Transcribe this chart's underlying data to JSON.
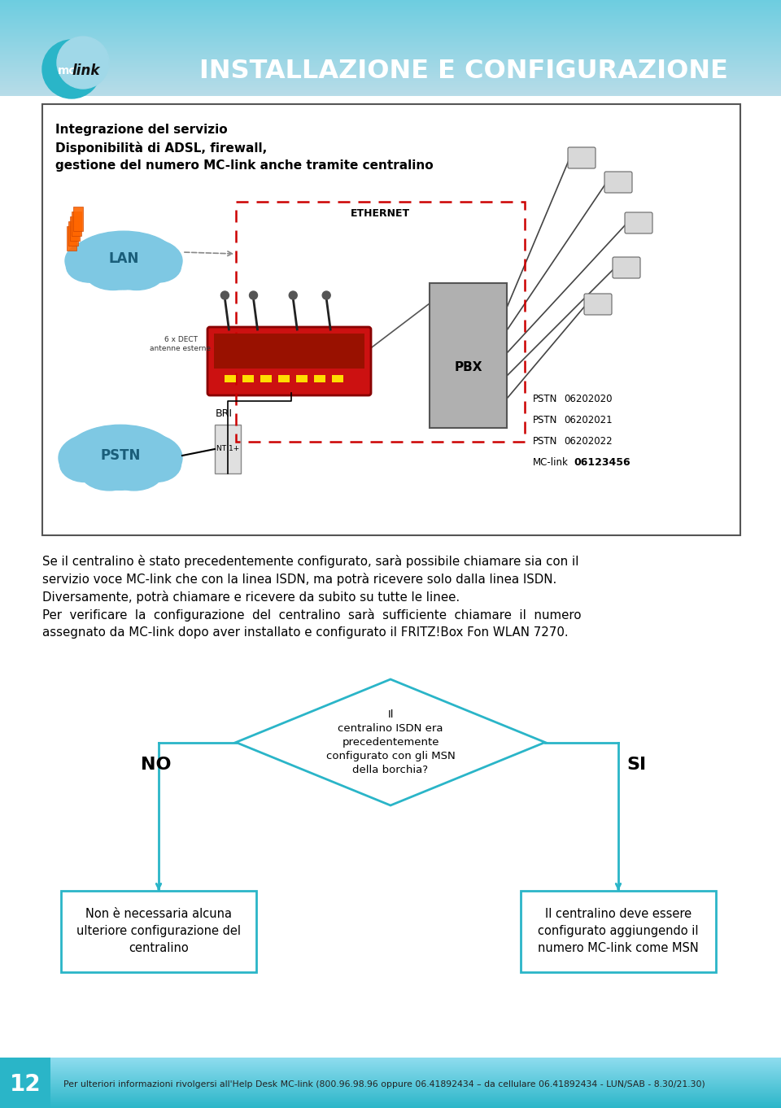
{
  "title": "INSTALLAZIONE E CONFIGURAZIONE",
  "diagram_box_title1": "Integrazione del servizio",
  "diagram_box_title2": "Disponibilità di ADSL, firewall,",
  "diagram_box_title3": "gestione del numero MC-link anche tramite centralino",
  "label_lan": "LAN",
  "label_pstn": "PSTN",
  "label_ethernet": "ETHERNET",
  "label_bri": "BRI",
  "label_nt1": "NT 1+",
  "label_pbx": "PBX",
  "label_dect": "6 x DECT\nantenne esterne",
  "pstn_lines": [
    "PSTN",
    "PSTN",
    "PSTN"
  ],
  "pstn_nums": [
    "06202020",
    "06202021",
    "06202022"
  ],
  "mclink_label": "MC-link",
  "mclink_num": "06123456",
  "body_text1": "Se il centralino è stato precedentemente configurato, sarà possibile chiamare sia con il",
  "body_text2": "servizio voce MC-link che con la linea ISDN, ma potrà ricevere solo dalla linea ISDN.",
  "body_text3": "Diversamente, potrà chiamare e ricevere da subito su tutte le linee.",
  "body_text4": "Per  verificare  la  configurazione  del  centralino  sarà  sufficiente  chiamare  il  numero",
  "body_text5": "assegnato da MC-link dopo aver installato e configurato il FRITZ!Box Fon WLAN 7270.",
  "diamond_text": "Il\ncentralino ISDN era\nprecedentemente\nconfigurato con gli MSN\ndella borchia?",
  "no_label": "NO",
  "si_label": "SI",
  "box_left_text": "Non è necessaria alcuna\nulteriore configurazione del\ncentralino",
  "box_right_text": "Il centralino deve essere\nconfigurato aggiungendo il\nnumero MC-link come MSN",
  "footer_page": "12",
  "footer_text": "Per ulteriori informazioni rivolgersi all'Help Desk MC-link (800.96.98.96 oppure 06.41892434 – da cellulare 06.41892434 - LUN/SAB - 8.30/21.30)",
  "teal": "#2ab5c8",
  "light_blue_cloud": "#7ec8e3",
  "flow_teal": "#2ab5c8",
  "header_top": "#6dcde0",
  "header_bot": "#b0dce8"
}
